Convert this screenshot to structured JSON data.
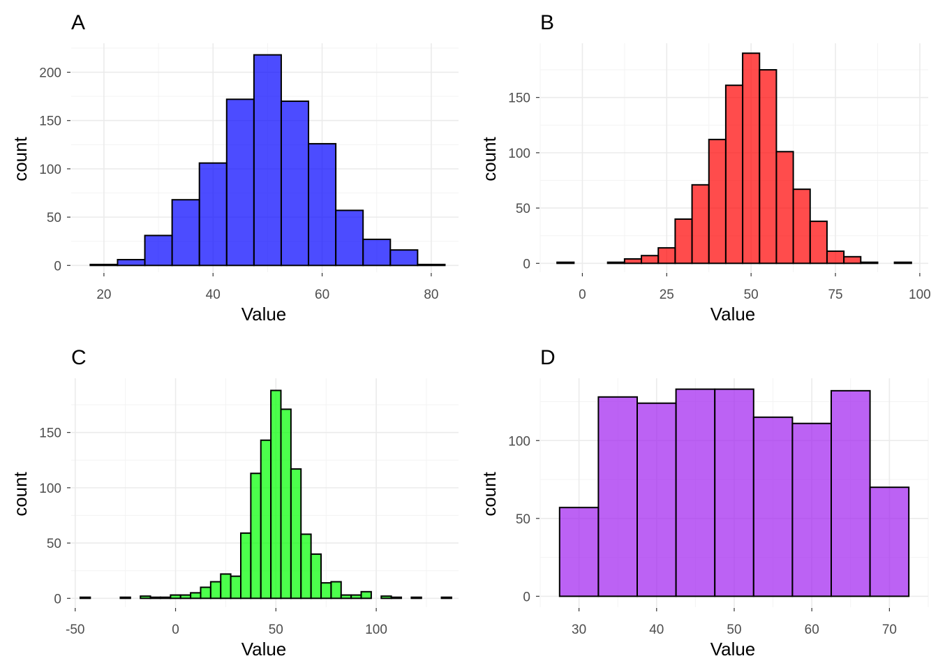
{
  "chart_data": [
    {
      "type": "bar",
      "panel": "A",
      "title": "A",
      "xlabel": "Value",
      "ylabel": "count",
      "color": "#0000ff",
      "opacity": 0.7,
      "bin_edges": [
        17.5,
        22.5,
        27.5,
        32.5,
        37.5,
        42.5,
        47.5,
        52.5,
        57.5,
        62.5,
        67.5,
        72.5,
        77.5,
        82.5
      ],
      "values": [
        1,
        6,
        31,
        68,
        106,
        172,
        218,
        170,
        126,
        57,
        27,
        16,
        1
      ],
      "xlim": [
        14,
        85
      ],
      "ylim": [
        -7,
        230
      ],
      "x_ticks": [
        20,
        40,
        60,
        80
      ],
      "x_tick_labels": [
        "20",
        "40",
        "60",
        "80"
      ],
      "y_ticks": [
        0,
        50,
        100,
        150,
        200
      ],
      "y_tick_labels": [
        "0",
        "50",
        "100",
        "150",
        "200"
      ],
      "grid": true
    },
    {
      "type": "bar",
      "panel": "B",
      "title": "B",
      "xlabel": "Value",
      "ylabel": "count",
      "color": "#ff0000",
      "opacity": 0.7,
      "bin_edges": [
        -7.5,
        -2.5,
        2.5,
        7.5,
        12.5,
        17.5,
        22.5,
        27.5,
        32.5,
        37.5,
        42.5,
        47.5,
        52.5,
        57.5,
        62.5,
        67.5,
        72.5,
        77.5,
        82.5,
        87.5,
        92.5,
        97.5
      ],
      "values": [
        1,
        0,
        0,
        1,
        4,
        7,
        14,
        40,
        71,
        112,
        161,
        190,
        175,
        101,
        67,
        38,
        11,
        6,
        1,
        0,
        1
      ],
      "xlim": [
        -12.5,
        102.5
      ],
      "ylim": [
        -8,
        199
      ],
      "x_ticks": [
        0,
        25,
        50,
        75,
        100
      ],
      "x_tick_labels": [
        "0",
        "25",
        "50",
        "75",
        "100"
      ],
      "y_ticks": [
        0,
        50,
        100,
        150
      ],
      "y_tick_labels": [
        "0",
        "50",
        "100",
        "150"
      ],
      "grid": true
    },
    {
      "type": "bar",
      "panel": "C",
      "title": "C",
      "xlabel": "Value",
      "ylabel": "count",
      "color": "#00ff00",
      "opacity": 0.7,
      "bin_edges": [
        -47.5,
        -42.5,
        -37.5,
        -32.5,
        -27.5,
        -22.5,
        -17.5,
        -12.5,
        -7.5,
        -2.5,
        2.5,
        7.5,
        12.5,
        17.5,
        22.5,
        27.5,
        32.5,
        37.5,
        42.5,
        47.5,
        52.5,
        57.5,
        62.5,
        67.5,
        72.5,
        77.5,
        82.5,
        87.5,
        92.5,
        97.5,
        102.5,
        107.5,
        112.5,
        117.5,
        122.5,
        127.5,
        132.5,
        137.5
      ],
      "values": [
        1,
        0,
        0,
        0,
        1,
        0,
        2,
        1,
        1,
        3,
        3,
        5,
        10,
        15,
        22,
        20,
        59,
        113,
        143,
        188,
        171,
        117,
        58,
        40,
        14,
        15,
        3,
        3,
        6,
        0,
        2,
        1,
        0,
        1,
        0,
        0,
        1
      ],
      "xlim": [
        -52,
        141
      ],
      "ylim": [
        -8,
        199
      ],
      "x_ticks": [
        -50,
        0,
        50,
        100
      ],
      "x_tick_labels": [
        "-50",
        "0",
        "50",
        "100"
      ],
      "y_ticks": [
        0,
        50,
        100,
        150
      ],
      "y_tick_labels": [
        "0",
        "50",
        "100",
        "150"
      ],
      "grid": true
    },
    {
      "type": "bar",
      "panel": "D",
      "title": "D",
      "xlabel": "Value",
      "ylabel": "count",
      "color": "#a020f0",
      "opacity": 0.7,
      "bin_edges": [
        27.5,
        32.5,
        37.5,
        42.5,
        47.5,
        52.5,
        57.5,
        62.5,
        67.5,
        72.5
      ],
      "values": [
        57,
        128,
        124,
        133,
        133,
        115,
        111,
        132,
        70
      ],
      "xlim": [
        25,
        75
      ],
      "ylim": [
        -7,
        140
      ],
      "x_ticks": [
        30,
        40,
        50,
        60,
        70
      ],
      "x_tick_labels": [
        "30",
        "40",
        "50",
        "60",
        "70"
      ],
      "y_ticks": [
        0,
        50,
        100
      ],
      "y_tick_labels": [
        "0",
        "50",
        "100"
      ],
      "grid": true
    }
  ]
}
